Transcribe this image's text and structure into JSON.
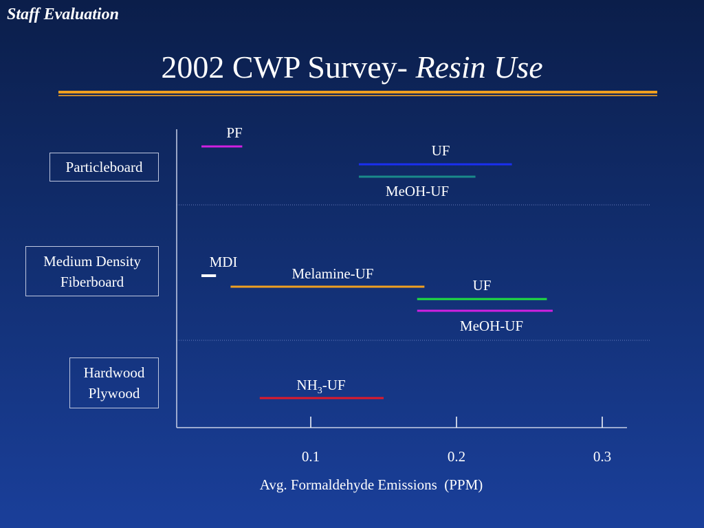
{
  "header": {
    "section_label": "Staff Evaluation",
    "title_main": "2002 CWP Survey- ",
    "title_italic": "Resin Use"
  },
  "categories": {
    "particleboard": [
      "Particleboard"
    ],
    "mdf": [
      "Medium Density",
      "Fiberboard"
    ],
    "plywood": [
      "Hardwood",
      "Plywood"
    ]
  },
  "colors": {
    "background_top": "#0b1e4a",
    "background_bottom": "#1a3f9a",
    "title_rule": "#f0a020",
    "text": "#ffffff"
  },
  "chart_data": {
    "type": "range-bar",
    "xlabel": "Avg. Formaldehyde Emissions  (PPM)",
    "x_ticks": [
      {
        "value": 0.1,
        "label": "0.1"
      },
      {
        "value": 0.2,
        "label": "0.2"
      },
      {
        "value": 0.3,
        "label": "0.3"
      }
    ],
    "xlim": [
      0.0,
      0.32
    ],
    "grid": "dotted horizontal separators between product groups",
    "groups": [
      "Particleboard",
      "Medium Density Fiberboard",
      "Hardwood Plywood"
    ],
    "series": [
      {
        "group": "Particleboard",
        "label": "PF",
        "min": 0.025,
        "max": 0.053,
        "color": "#d020e0"
      },
      {
        "group": "Particleboard",
        "label": "UF",
        "min": 0.133,
        "max": 0.238,
        "color": "#1a2ff0"
      },
      {
        "group": "Particleboard",
        "label": "MeOH-UF",
        "min": 0.133,
        "max": 0.213,
        "color": "#1a8a8a"
      },
      {
        "group": "Medium Density Fiberboard",
        "label": "MDI",
        "min": 0.025,
        "max": 0.035,
        "color": "#ffffff"
      },
      {
        "group": "Medium Density Fiberboard",
        "label": "Melamine-UF",
        "min": 0.045,
        "max": 0.178,
        "color": "#f0a020"
      },
      {
        "group": "Medium Density Fiberboard",
        "label": "UF",
        "min": 0.173,
        "max": 0.262,
        "color": "#20e040"
      },
      {
        "group": "Medium Density Fiberboard",
        "label": "MeOH-UF",
        "min": 0.173,
        "max": 0.266,
        "color": "#d020e0"
      },
      {
        "group": "Hardwood Plywood",
        "label": "NH3-UF",
        "label_base": "NH",
        "label_sub": "3",
        "label_rest": "-UF",
        "min": 0.065,
        "max": 0.15,
        "color": "#e01a2a"
      }
    ]
  }
}
